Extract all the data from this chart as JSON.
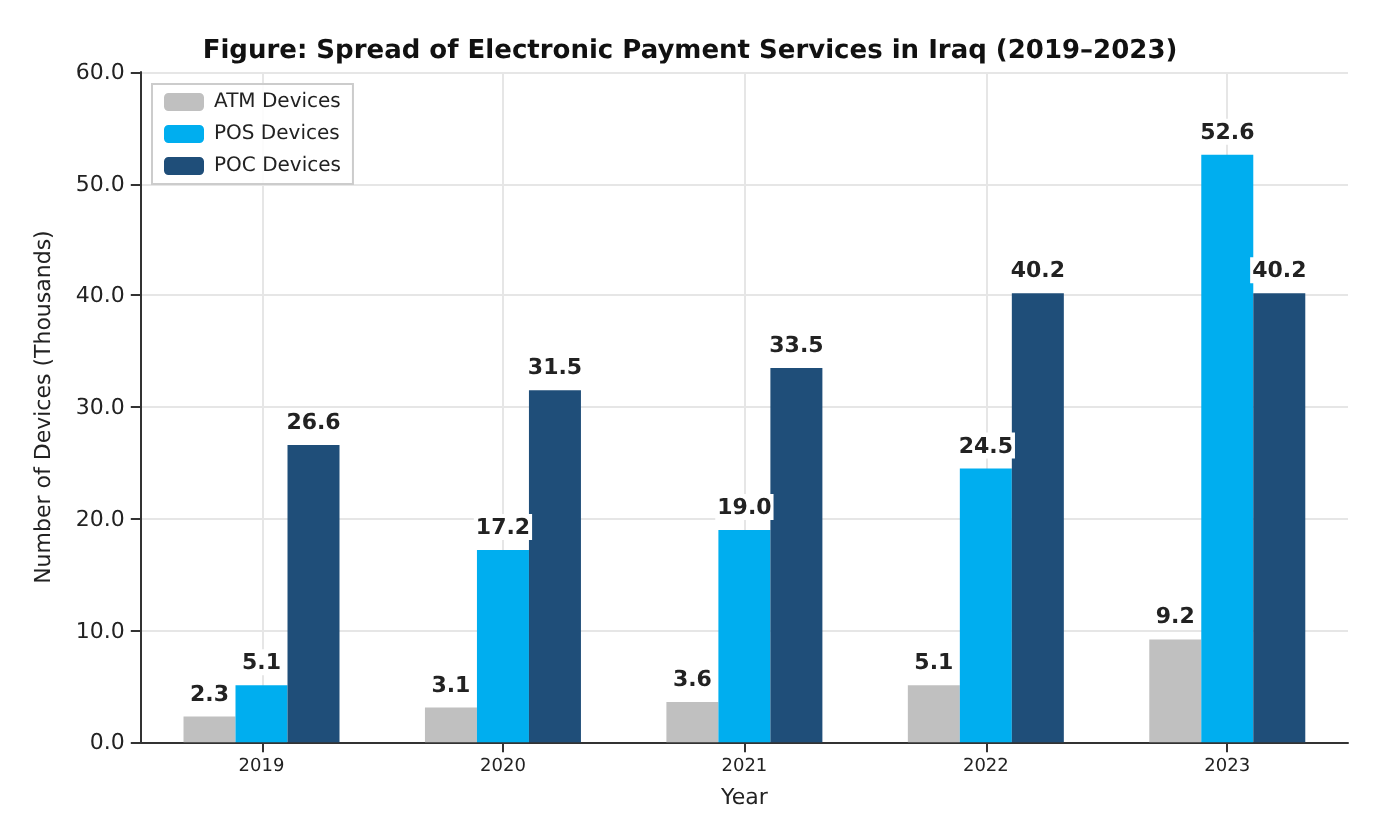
{
  "chart_data": {
    "type": "bar",
    "title": "Figure: Spread of Electronic Payment Services in Iraq (2019–2023)",
    "xlabel": "Year",
    "ylabel": "Number of Devices (Thousands)",
    "categories": [
      "2019",
      "2020",
      "2021",
      "2022",
      "2023"
    ],
    "series": [
      {
        "name": "ATM Devices",
        "color": "#c0c0c0",
        "values": [
          2.3,
          3.1,
          3.6,
          5.1,
          9.2
        ],
        "value_labels": [
          "2.3",
          "3.1",
          "3.6",
          "5.1",
          "9.2"
        ]
      },
      {
        "name": "POS Devices",
        "color": "#00aeef",
        "values": [
          5.1,
          17.2,
          19.0,
          24.5,
          52.6
        ],
        "value_labels": [
          "5.1",
          "17.2",
          "19.0",
          "24.5",
          "52.6"
        ]
      },
      {
        "name": "POC Devices",
        "color": "#1f4e79",
        "values": [
          26.6,
          31.5,
          33.5,
          40.2,
          40.2
        ],
        "value_labels": [
          "26.6",
          "31.5",
          "33.5",
          "40.2",
          "40.2"
        ]
      }
    ],
    "ylim": [
      0,
      60
    ],
    "yticks": [
      {
        "value": 0,
        "label": "0.0"
      },
      {
        "value": 10,
        "label": "10.0"
      },
      {
        "value": 20,
        "label": "20.0"
      },
      {
        "value": 30,
        "label": "30.0"
      },
      {
        "value": 40,
        "label": "40.0"
      },
      {
        "value": 50,
        "label": "50.0"
      },
      {
        "value": 60,
        "label": "60.0"
      }
    ],
    "grid": true,
    "legend": "top left"
  }
}
